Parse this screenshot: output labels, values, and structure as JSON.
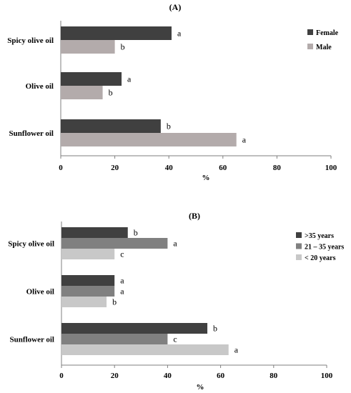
{
  "chart_data": [
    {
      "type": "bar",
      "orientation": "horizontal",
      "panel_label": "A",
      "title": "(A)",
      "categories": [
        "Spicy olive oil",
        "Olive oil",
        "Sunflower oil"
      ],
      "series": [
        {
          "name": "Female",
          "color": "#404040",
          "values": [
            41,
            22.5,
            37
          ],
          "letters": [
            "a",
            "a",
            "b"
          ]
        },
        {
          "name": "Male",
          "color": "#b3abab",
          "values": [
            20,
            15.5,
            65
          ],
          "letters": [
            "b",
            "b",
            "a"
          ]
        }
      ],
      "xlabel": "%",
      "xlim": [
        0,
        100
      ],
      "xticks": [
        "0",
        "20",
        "40",
        "60",
        "80",
        "100"
      ],
      "grid": false,
      "legend": "right"
    },
    {
      "type": "bar",
      "orientation": "horizontal",
      "panel_label": "B",
      "title": "(B)",
      "categories": [
        "Spicy olive oil",
        "Olive oil",
        "Sunflower oil"
      ],
      "series": [
        {
          "name": ">35 years",
          "color": "#404040",
          "values": [
            25,
            20,
            55
          ],
          "letters": [
            "b",
            "a",
            "b"
          ]
        },
        {
          "name": "21 – 35 years",
          "color": "#808080",
          "values": [
            40,
            20,
            40
          ],
          "letters": [
            "a",
            "a",
            "c"
          ]
        },
        {
          "name": "< 20 years",
          "color": "#c8c8c8",
          "values": [
            20,
            17,
            63
          ],
          "letters": [
            "c",
            "b",
            "a"
          ]
        }
      ],
      "xlabel": "%",
      "xlim": [
        0,
        100
      ],
      "xticks": [
        "0",
        "20",
        "40",
        "60",
        "80",
        "100"
      ],
      "grid": false,
      "legend": "right"
    }
  ]
}
